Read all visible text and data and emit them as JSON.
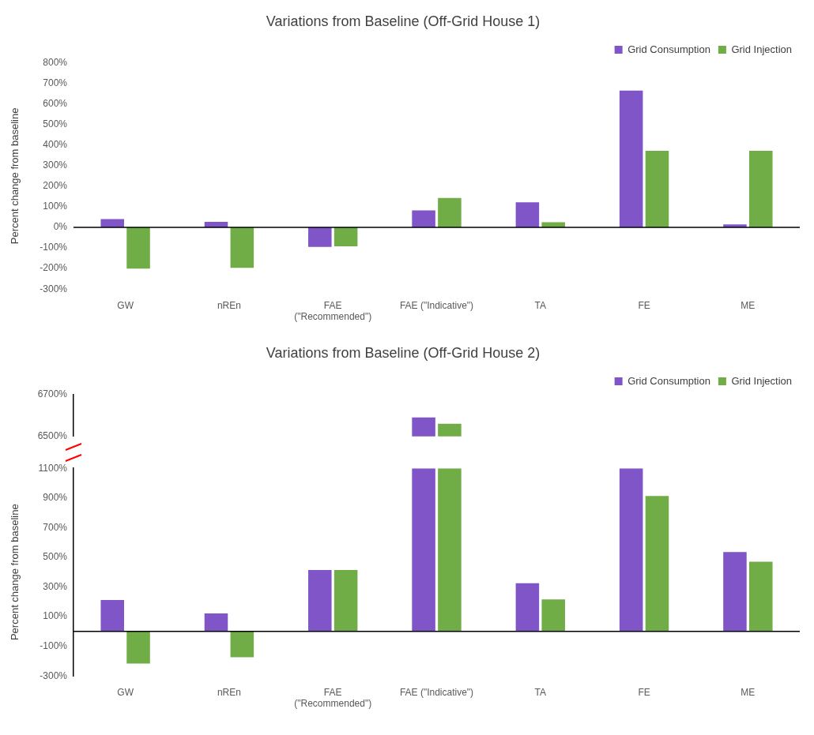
{
  "chart_data": [
    {
      "type": "bar",
      "title": "Variations from Baseline (Off-Grid House 1)",
      "ylabel": "Percent change from baseline",
      "categories": [
        "GW",
        "nREn",
        "FAE\n(\"Recommended\")",
        "FAE (\"Indicative\")",
        "TA",
        "FE",
        "ME"
      ],
      "series": [
        {
          "name": "Grid Consumption",
          "color": "#8055c8",
          "values": [
            40,
            27,
            -95,
            83,
            122,
            665,
            15
          ]
        },
        {
          "name": "Grid Injection",
          "color": "#70ad47",
          "values": [
            -200,
            -197,
            -92,
            143,
            25,
            372,
            372
          ]
        }
      ],
      "ylim": [
        -300,
        800
      ],
      "yticks": [
        {
          "value": -300,
          "label": "-300%"
        },
        {
          "value": -200,
          "label": "-200%"
        },
        {
          "value": -100,
          "label": "-100%"
        },
        {
          "value": 0,
          "label": "0%"
        },
        {
          "value": 100,
          "label": "100%"
        },
        {
          "value": 200,
          "label": "200%"
        },
        {
          "value": 300,
          "label": "300%"
        },
        {
          "value": 400,
          "label": "400%"
        },
        {
          "value": 500,
          "label": "500%"
        },
        {
          "value": 600,
          "label": "600%"
        },
        {
          "value": 700,
          "label": "700%"
        },
        {
          "value": 800,
          "label": "800%"
        }
      ],
      "grid": false,
      "legend": "top right",
      "ref_lines": [
        {
          "axis": "y",
          "value": 0
        }
      ]
    },
    {
      "type": "bar",
      "title": "Variations from Baseline (Off-Grid House 2)",
      "categories": [
        null,
        null,
        null,
        null,
        null,
        null,
        null
      ],
      "series": [
        {
          "name": "Grid Consumption",
          "color": "#8055c8",
          "values": [
            null,
            null,
            null,
            6590,
            null,
            null,
            null
          ]
        },
        {
          "name": "Grid Injection",
          "color": "#70ad47",
          "values": [
            null,
            null,
            null,
            6560,
            null,
            null,
            null
          ]
        }
      ],
      "ylim": [
        6500,
        6700
      ],
      "yticks": [
        {
          "value": 6500,
          "label": "6500%"
        },
        {
          "value": 6700,
          "label": "6700%"
        }
      ],
      "grid": false,
      "legend": "top right"
    },
    {
      "type": "bar",
      "ylabel": "Percent change from baseline",
      "categories": [
        "GW",
        "nREn",
        "FAE\n(\"Recommended\")",
        "FAE (\"Indicative\")",
        "TA",
        "FE",
        "ME"
      ],
      "series": [
        {
          "color": "#8055c8",
          "values": [
            212,
            122,
            414,
            1100,
            325,
            1100,
            536
          ]
        },
        {
          "color": "#70ad47",
          "values": [
            -216,
            -174,
            414,
            1100,
            216,
            914,
            470
          ]
        }
      ],
      "ylim": [
        -300,
        1100
      ],
      "yticks": [
        {
          "value": -300,
          "label": "-300%"
        },
        {
          "value": -100,
          "label": "-100%"
        },
        {
          "value": 100,
          "label": "100%"
        },
        {
          "value": 300,
          "label": "300%"
        },
        {
          "value": 500,
          "label": "500%"
        },
        {
          "value": 700,
          "label": "700%"
        },
        {
          "value": 900,
          "label": "900%"
        },
        {
          "value": 1100,
          "label": "1100%"
        }
      ],
      "grid": false,
      "ref_lines": [
        {
          "axis": "y",
          "value": 0
        }
      ]
    }
  ]
}
